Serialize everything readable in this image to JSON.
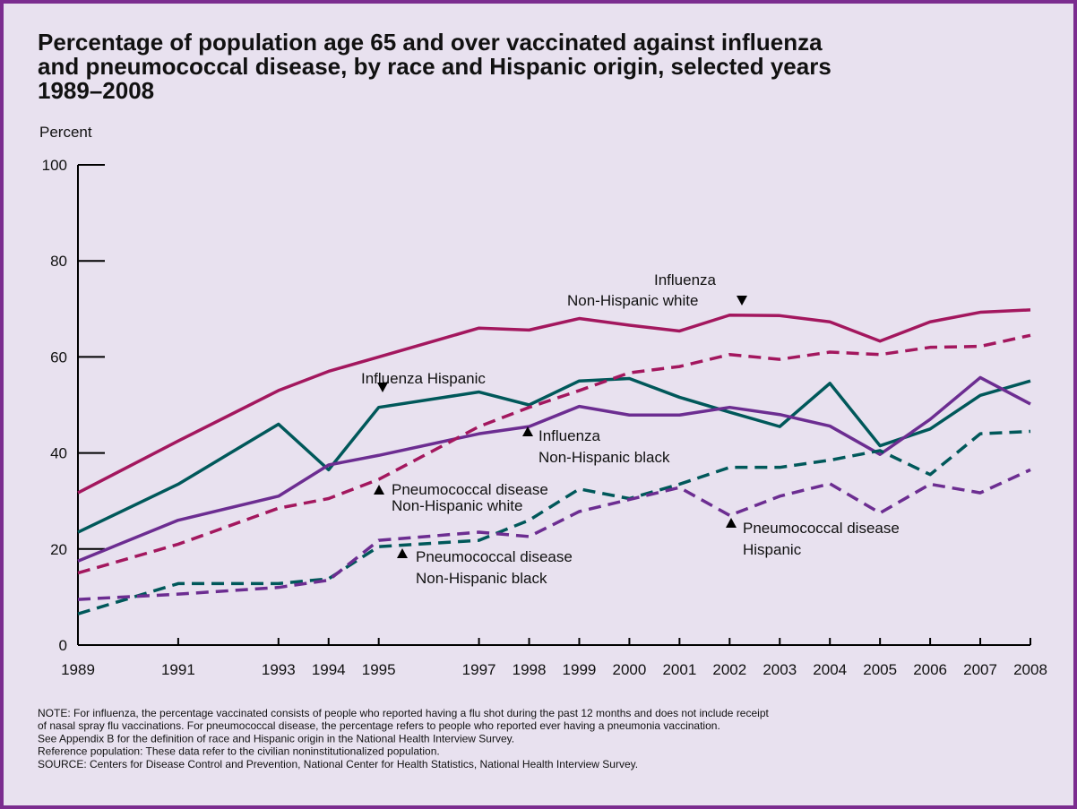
{
  "chart_data": {
    "type": "line",
    "title": [
      "Percentage of population age 65 and over vaccinated against influenza",
      "and pneumococcal disease, by race and Hispanic origin, selected years",
      "1989–2008"
    ],
    "y_label": "Percent",
    "x": [
      1989,
      1991,
      1993,
      1994,
      1995,
      1997,
      1998,
      1999,
      2000,
      2001,
      2002,
      2003,
      2004,
      2005,
      2006,
      2007,
      2008
    ],
    "xlim": [
      1989,
      2008
    ],
    "xticks": [
      1989,
      1991,
      1993,
      1994,
      1995,
      1997,
      1998,
      1999,
      2000,
      2001,
      2002,
      2003,
      2004,
      2005,
      2006,
      2007,
      2008
    ],
    "ylim": [
      0,
      100
    ],
    "yticks": [
      0,
      20,
      40,
      60,
      80,
      100
    ],
    "series": [
      {
        "name": [
          "Influenza",
          "Non-Hispanic white"
        ],
        "color": "#a3175e",
        "dash": false,
        "values": [
          31.7,
          42.5,
          53,
          57,
          60,
          66,
          65.6,
          68,
          66.6,
          65.4,
          68.7,
          68.6,
          67.3,
          63.3,
          67.3,
          69.3,
          69.8
        ]
      },
      {
        "name": [
          "Influenza Hispanic"
        ],
        "color": "#00585a",
        "dash": false,
        "values": [
          23.5,
          33.5,
          46,
          36.5,
          49.5,
          52.7,
          50,
          55,
          55.5,
          51.6,
          48.5,
          45.5,
          54.5,
          41.5,
          45,
          52,
          55
        ]
      },
      {
        "name": [
          "Influenza",
          "Non-Hispanic black"
        ],
        "color": "#6c2d91",
        "dash": false,
        "values": [
          17.5,
          26,
          31,
          37.5,
          39.5,
          44,
          45.5,
          49.7,
          47.9,
          47.9,
          49.5,
          48,
          45.6,
          39.7,
          47,
          55.7,
          50.2
        ]
      },
      {
        "name": [
          "Pneumococcal disease",
          "Non-Hispanic white"
        ],
        "color": "#a3175e",
        "dash": true,
        "values": [
          15,
          21,
          28.5,
          30.5,
          34.5,
          45.5,
          49.5,
          53,
          56.7,
          58,
          60.5,
          59.5,
          61,
          60.5,
          62,
          62.2,
          64.5
        ]
      },
      {
        "name": [
          "Pneumococcal disease",
          "Hispanic"
        ],
        "color": "#00585a",
        "dash": true,
        "values": [
          6.5,
          12.8,
          12.8,
          13.8,
          20.5,
          21.8,
          26,
          32.5,
          30.5,
          33.5,
          37,
          37,
          38.5,
          40.5,
          35.5,
          44,
          44.5
        ]
      },
      {
        "name": [
          "Pneumococcal disease",
          "Non-Hispanic black"
        ],
        "color": "#6c2d91",
        "dash": true,
        "values": [
          9.5,
          10.6,
          12,
          13.5,
          21.8,
          23.5,
          22.6,
          27.8,
          30.3,
          32.8,
          27,
          31,
          33.6,
          27.5,
          33.5,
          31.7,
          36.5
        ]
      }
    ],
    "notes": [
      "NOTE: For influenza, the percentage vaccinated consists of people who reported having a flu shot during the past 12 months and does not include receipt",
      "of nasal spray flu vaccinations. For pneumococcal disease, the percentage refers to people who reported ever having a pneumonia vaccination.",
      "See Appendix B for the definition of race and Hispanic origin in the National Health Interview Survey.",
      "Reference population: These data refer to the civilian noninstitutionalized population.",
      "SOURCE: Centers for Disease Control and Prevention, National Center for Health Statistics, National Health Interview Survey."
    ]
  }
}
